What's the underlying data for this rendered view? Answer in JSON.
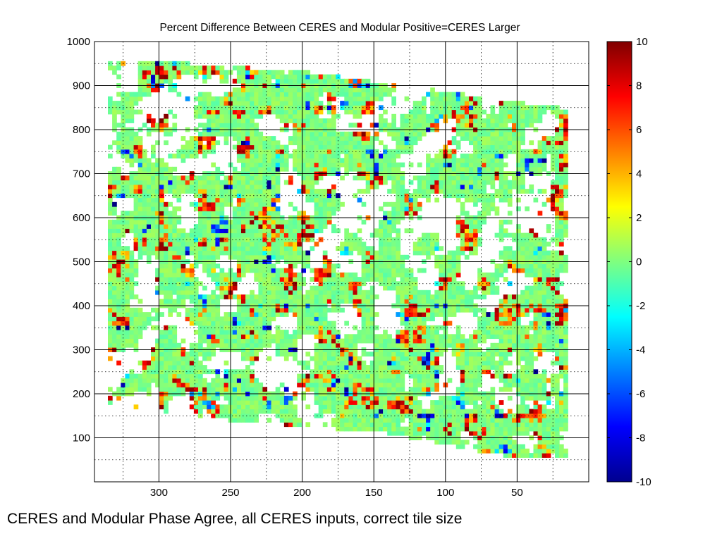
{
  "caption": "CERES and Modular Phase Agree, all CERES inputs, correct tile size",
  "chart_data": {
    "type": "heatmap",
    "title": "Percent Difference Between CERES and Modular Positive=CERES Larger",
    "xlabel": "",
    "ylabel": "",
    "xlim": [
      345,
      0
    ],
    "ylim": [
      0,
      1000
    ],
    "x_reversed": true,
    "x_ticks": [
      300,
      250,
      200,
      150,
      100,
      50
    ],
    "y_ticks": [
      100,
      200,
      300,
      400,
      500,
      600,
      700,
      800,
      900,
      1000
    ],
    "grid": "major solid, minor dotted",
    "colorbar": {
      "range": [
        -10,
        10
      ],
      "ticks": [
        10,
        8,
        6,
        4,
        2,
        0,
        -2,
        -4,
        -6,
        -8,
        -10
      ],
      "colormap": "jet"
    },
    "data_region": {
      "upper_edge_x": [
        335,
        300,
        195,
        0
      ],
      "upper_edge_y": [
        960,
        955,
        930,
        840
      ],
      "lower_edge_x": [
        340,
        250,
        140,
        60,
        15
      ],
      "lower_edge_y": [
        175,
        140,
        110,
        60,
        55
      ]
    },
    "value_summary": "Mostly near 0% (green), with scattered positive patches (up to +10%) and a few negative patches (down to -10%)"
  }
}
